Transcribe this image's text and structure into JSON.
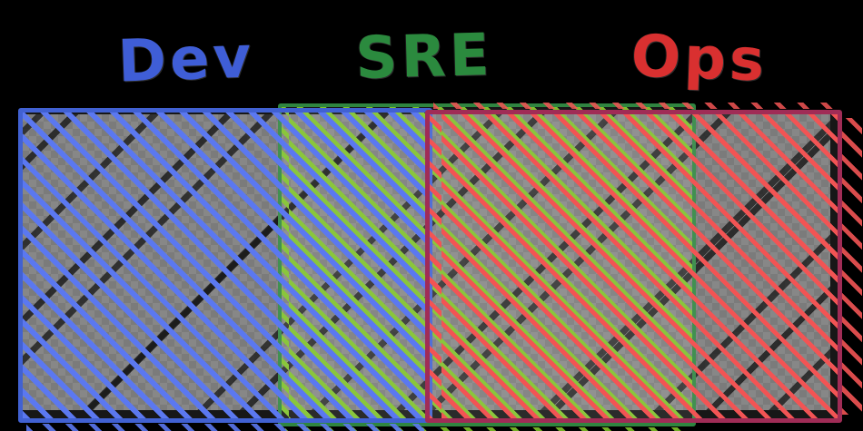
{
  "page": {
    "background_color": "#000000"
  },
  "diagram": {
    "type": "overlap-band-diagram",
    "description": "Hand-drawn diagram showing overlapping responsibility bands of Dev, SRE and Ops",
    "base_fill": {
      "checker_colors": [
        "#6e6e6e",
        "#7c7c7c"
      ],
      "speckle_color": "#000000"
    },
    "regions": [
      {
        "id": "dev",
        "label": "Dev",
        "label_color": "#3f5ed7",
        "border_color": "#4161d2",
        "hatch_color": "#5b78f0"
      },
      {
        "id": "sre",
        "label": "SRE",
        "label_color": "#2b8a3e",
        "border_color": "#2f8540",
        "hatch_color": "#7fc129"
      },
      {
        "id": "ops",
        "label": "Ops",
        "label_color": "#d93030",
        "border_color": "#a02c56",
        "hatch_color": "#f25454"
      }
    ],
    "overlaps": [
      {
        "between": [
          "dev",
          "sre"
        ]
      },
      {
        "between": [
          "sre",
          "ops"
        ]
      }
    ]
  }
}
